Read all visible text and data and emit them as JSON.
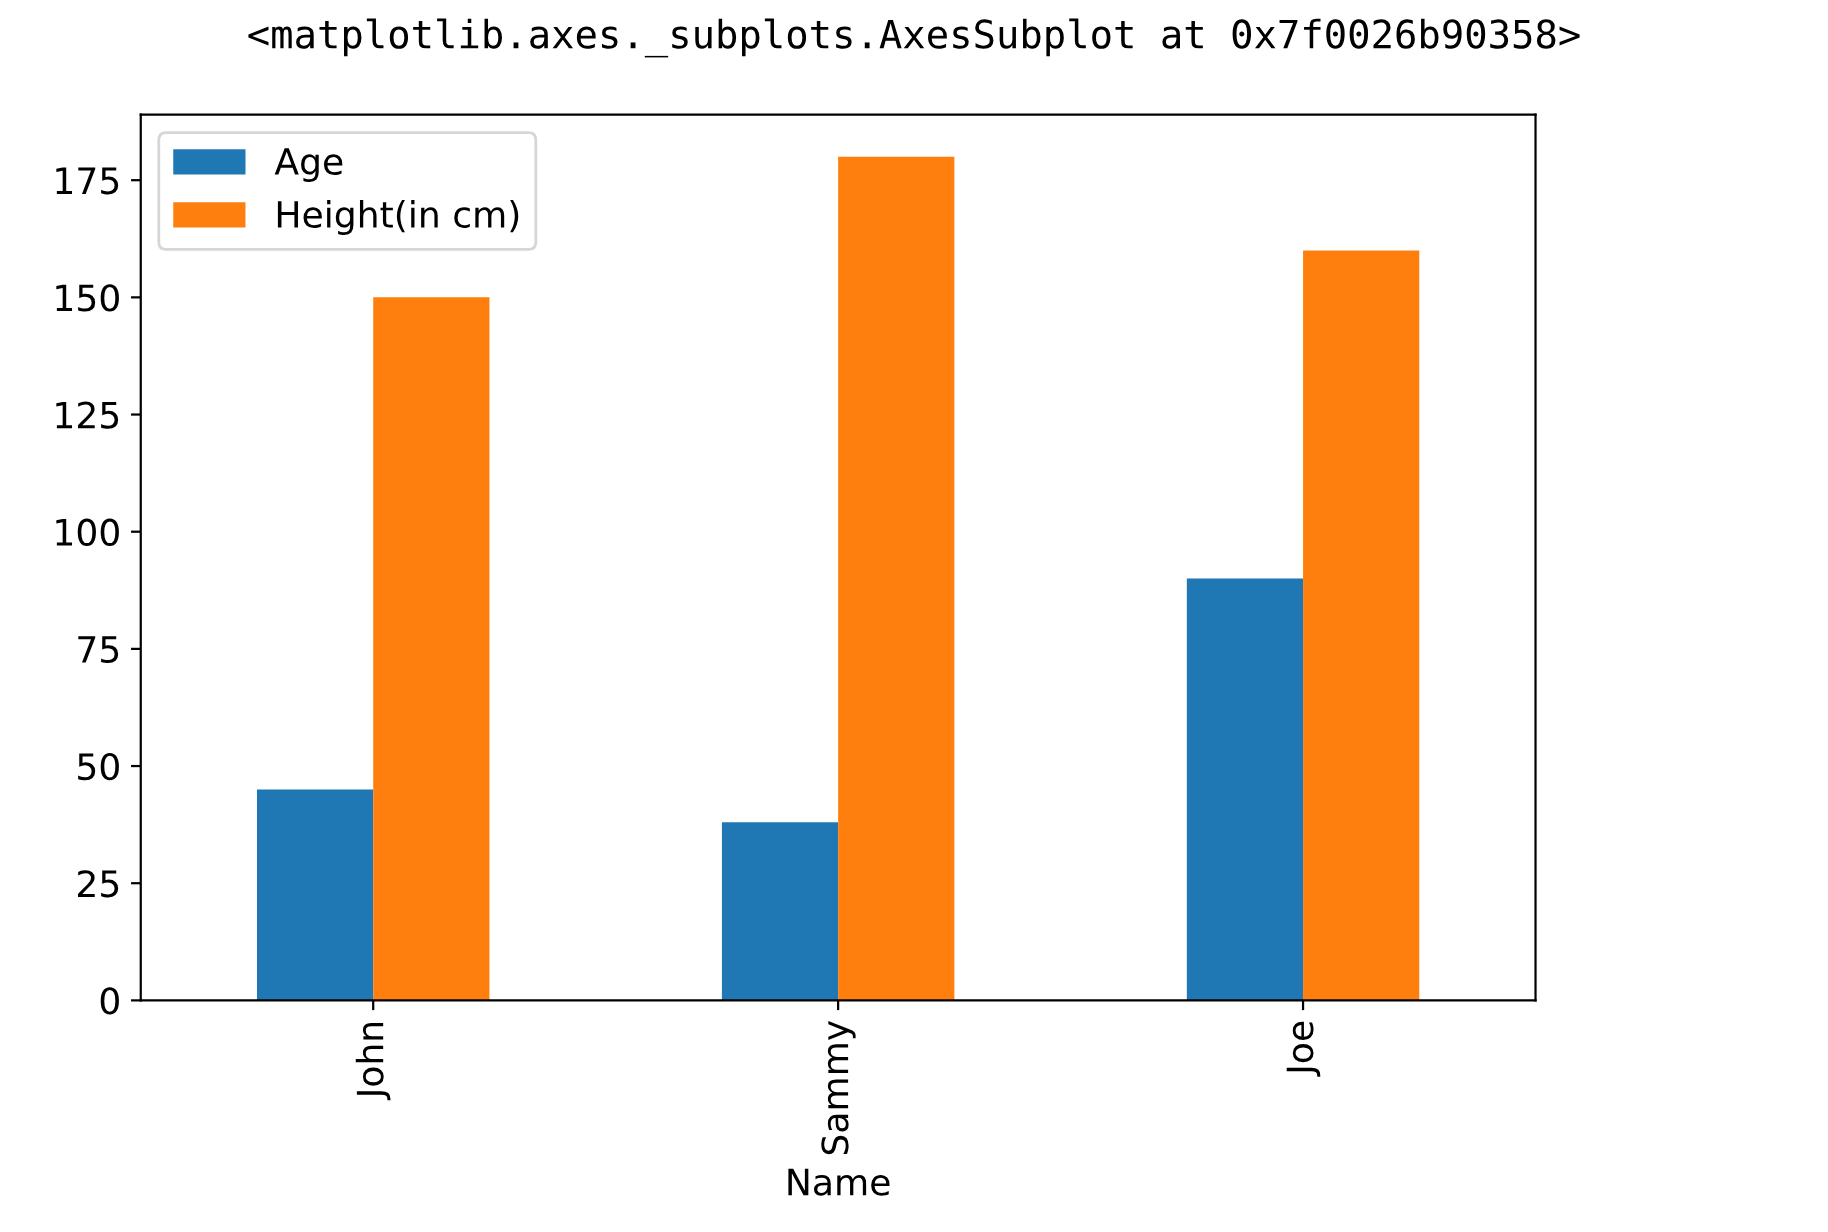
{
  "chart_data": {
    "type": "bar",
    "xlabel": "Name",
    "annotations": [
      "<matplotlib.axes._subplots.AxesSubplot at 0x7f0026b90358>"
    ],
    "categories": [
      "John",
      "Sammy",
      "Joe"
    ],
    "series": [
      {
        "name": "Age",
        "color": "#1f77b4",
        "values": [
          45,
          38,
          90
        ]
      },
      {
        "name": "Height(in cm)",
        "color": "#ff7f0e",
        "values": [
          150,
          180,
          160
        ]
      }
    ],
    "ylim": [
      0,
      189
    ],
    "yticks": [
      0,
      25,
      50,
      75,
      100,
      125,
      150,
      175
    ],
    "legend": "top left",
    "grid": false
  }
}
